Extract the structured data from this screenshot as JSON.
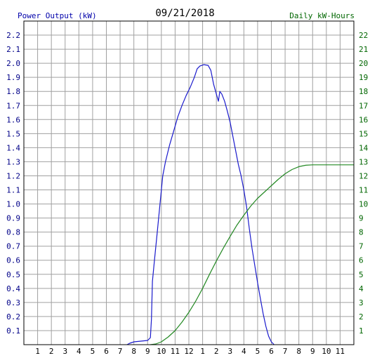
{
  "header": {
    "left_label": "Power Output (kW)",
    "date": "09/21/2018",
    "right_label": "Daily kW-Hours"
  },
  "colors": {
    "power_line": "#1a1acc",
    "energy_line": "#228822",
    "grid": "#a0a0a0",
    "left_axis_text": "#000088",
    "right_axis_text": "#006600",
    "x_axis_text": "#000000"
  },
  "chart_data": {
    "type": "line",
    "title": "09/21/2018",
    "xlabel": "",
    "ylabel": "Power Output (kW)",
    "y2label": "Daily kW-Hours",
    "x_ticks": [
      "1",
      "2",
      "3",
      "4",
      "5",
      "6",
      "7",
      "8",
      "9",
      "10",
      "11",
      "12",
      "1",
      "2",
      "3",
      "4",
      "5",
      "6",
      "7",
      "8",
      "9",
      "10",
      "11"
    ],
    "x_range_hours": [
      0,
      24
    ],
    "ylim": [
      0,
      2.3
    ],
    "y_ticks": [
      "0.1",
      "0.2",
      "0.3",
      "0.4",
      "0.5",
      "0.6",
      "0.7",
      "0.8",
      "0.9",
      "1.0",
      "1.1",
      "1.2",
      "1.3",
      "1.4",
      "1.5",
      "1.6",
      "1.7",
      "1.8",
      "1.9",
      "2.0",
      "2.1",
      "2.2"
    ],
    "y2lim": [
      0,
      23
    ],
    "y2_ticks": [
      "1",
      "2",
      "3",
      "4",
      "5",
      "6",
      "7",
      "8",
      "9",
      "10",
      "11",
      "12",
      "13",
      "14",
      "15",
      "16",
      "17",
      "18",
      "19",
      "20",
      "21",
      "22"
    ],
    "grid": true,
    "series": [
      {
        "axis": "left",
        "color_key": "power_line",
        "points": [
          [
            7.5,
            0.0
          ],
          [
            7.7,
            0.01
          ],
          [
            8.0,
            0.02
          ],
          [
            8.5,
            0.025
          ],
          [
            9.0,
            0.03
          ],
          [
            9.2,
            0.05
          ],
          [
            9.28,
            0.18
          ],
          [
            9.35,
            0.45
          ],
          [
            9.5,
            0.6
          ],
          [
            9.7,
            0.8
          ],
          [
            9.9,
            1.0
          ],
          [
            10.1,
            1.2
          ],
          [
            10.3,
            1.3
          ],
          [
            10.6,
            1.42
          ],
          [
            10.9,
            1.52
          ],
          [
            11.2,
            1.62
          ],
          [
            11.5,
            1.7
          ],
          [
            11.8,
            1.77
          ],
          [
            12.1,
            1.83
          ],
          [
            12.4,
            1.9
          ],
          [
            12.6,
            1.96
          ],
          [
            12.8,
            1.98
          ],
          [
            13.1,
            1.99
          ],
          [
            13.4,
            1.985
          ],
          [
            13.6,
            1.95
          ],
          [
            13.8,
            1.85
          ],
          [
            14.0,
            1.78
          ],
          [
            14.15,
            1.73
          ],
          [
            14.25,
            1.8
          ],
          [
            14.4,
            1.78
          ],
          [
            14.6,
            1.73
          ],
          [
            14.8,
            1.66
          ],
          [
            15.0,
            1.58
          ],
          [
            15.2,
            1.48
          ],
          [
            15.4,
            1.38
          ],
          [
            15.6,
            1.28
          ],
          [
            15.8,
            1.2
          ],
          [
            16.0,
            1.1
          ],
          [
            16.2,
            0.98
          ],
          [
            16.4,
            0.82
          ],
          [
            16.6,
            0.68
          ],
          [
            16.8,
            0.56
          ],
          [
            17.0,
            0.44
          ],
          [
            17.2,
            0.33
          ],
          [
            17.4,
            0.22
          ],
          [
            17.6,
            0.13
          ],
          [
            17.8,
            0.06
          ],
          [
            18.0,
            0.02
          ],
          [
            18.2,
            0.0
          ]
        ]
      },
      {
        "axis": "right",
        "color_key": "energy_line",
        "points": [
          [
            9.2,
            0.0
          ],
          [
            9.6,
            0.05
          ],
          [
            10.0,
            0.2
          ],
          [
            10.5,
            0.55
          ],
          [
            11.0,
            1.0
          ],
          [
            11.5,
            1.6
          ],
          [
            12.0,
            2.3
          ],
          [
            12.5,
            3.1
          ],
          [
            13.0,
            4.0
          ],
          [
            13.5,
            5.0
          ],
          [
            14.0,
            5.95
          ],
          [
            14.5,
            6.85
          ],
          [
            15.0,
            7.7
          ],
          [
            15.5,
            8.5
          ],
          [
            16.0,
            9.2
          ],
          [
            16.5,
            9.85
          ],
          [
            17.0,
            10.4
          ],
          [
            17.5,
            10.85
          ],
          [
            18.0,
            11.3
          ],
          [
            18.5,
            11.75
          ],
          [
            19.0,
            12.15
          ],
          [
            19.5,
            12.45
          ],
          [
            20.0,
            12.65
          ],
          [
            20.5,
            12.75
          ],
          [
            21.0,
            12.78
          ],
          [
            22.0,
            12.78
          ],
          [
            23.0,
            12.78
          ],
          [
            24.0,
            12.78
          ]
        ]
      }
    ]
  }
}
